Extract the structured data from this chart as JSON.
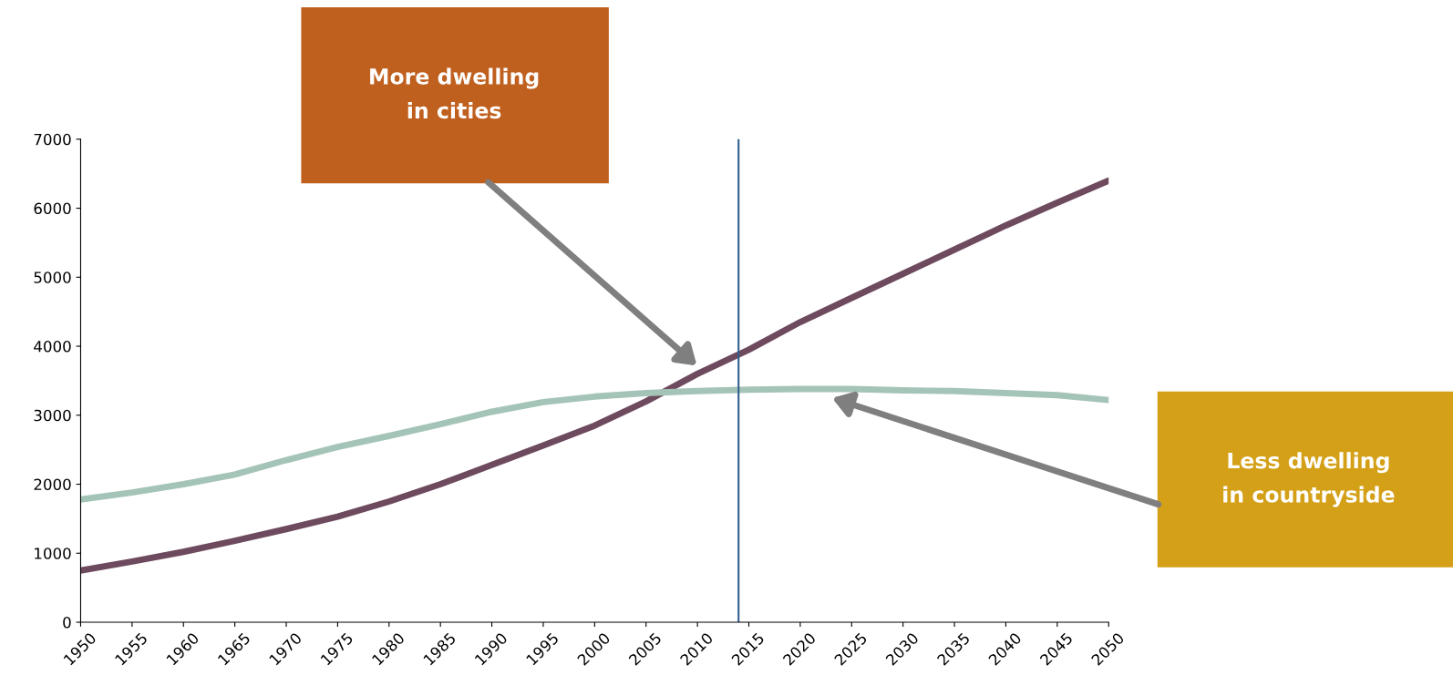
{
  "chart_data": {
    "type": "line",
    "x": [
      1950,
      1955,
      1960,
      1965,
      1970,
      1975,
      1980,
      1985,
      1990,
      1995,
      2000,
      2005,
      2010,
      2015,
      2020,
      2025,
      2030,
      2035,
      2040,
      2045,
      2050
    ],
    "series": [
      {
        "color": "#6e4a5e",
        "values": [
          750,
          880,
          1020,
          1180,
          1350,
          1530,
          1750,
          2000,
          2280,
          2560,
          2850,
          3200,
          3600,
          3950,
          4350,
          4700,
          5050,
          5400,
          5750,
          6080,
          6400
        ]
      },
      {
        "color": "#a5c4b8",
        "values": [
          1780,
          1880,
          2000,
          2140,
          2350,
          2540,
          2700,
          2870,
          3050,
          3190,
          3270,
          3320,
          3350,
          3370,
          3380,
          3380,
          3360,
          3350,
          3320,
          3290,
          3220
        ]
      }
    ],
    "xlim": [
      1950,
      2050
    ],
    "xticks": [
      1950,
      1955,
      1960,
      1965,
      1970,
      1975,
      1980,
      1985,
      1990,
      1995,
      2000,
      2005,
      2010,
      2015,
      2020,
      2025,
      2030,
      2035,
      2040,
      2045,
      2050
    ],
    "ylim": [
      0,
      7000
    ],
    "yticks": [
      0,
      1000,
      2000,
      3000,
      4000,
      5000,
      6000,
      7000
    ],
    "ref_lines": [
      {
        "axis": "x",
        "value": 2014,
        "color": "#2f5f8f"
      }
    ],
    "annotations": [
      "More dwelling\nin cities",
      "Less dwelling\nin countryside"
    ],
    "grid": false,
    "legend": false,
    "marker": "none",
    "line_style": "solid"
  }
}
